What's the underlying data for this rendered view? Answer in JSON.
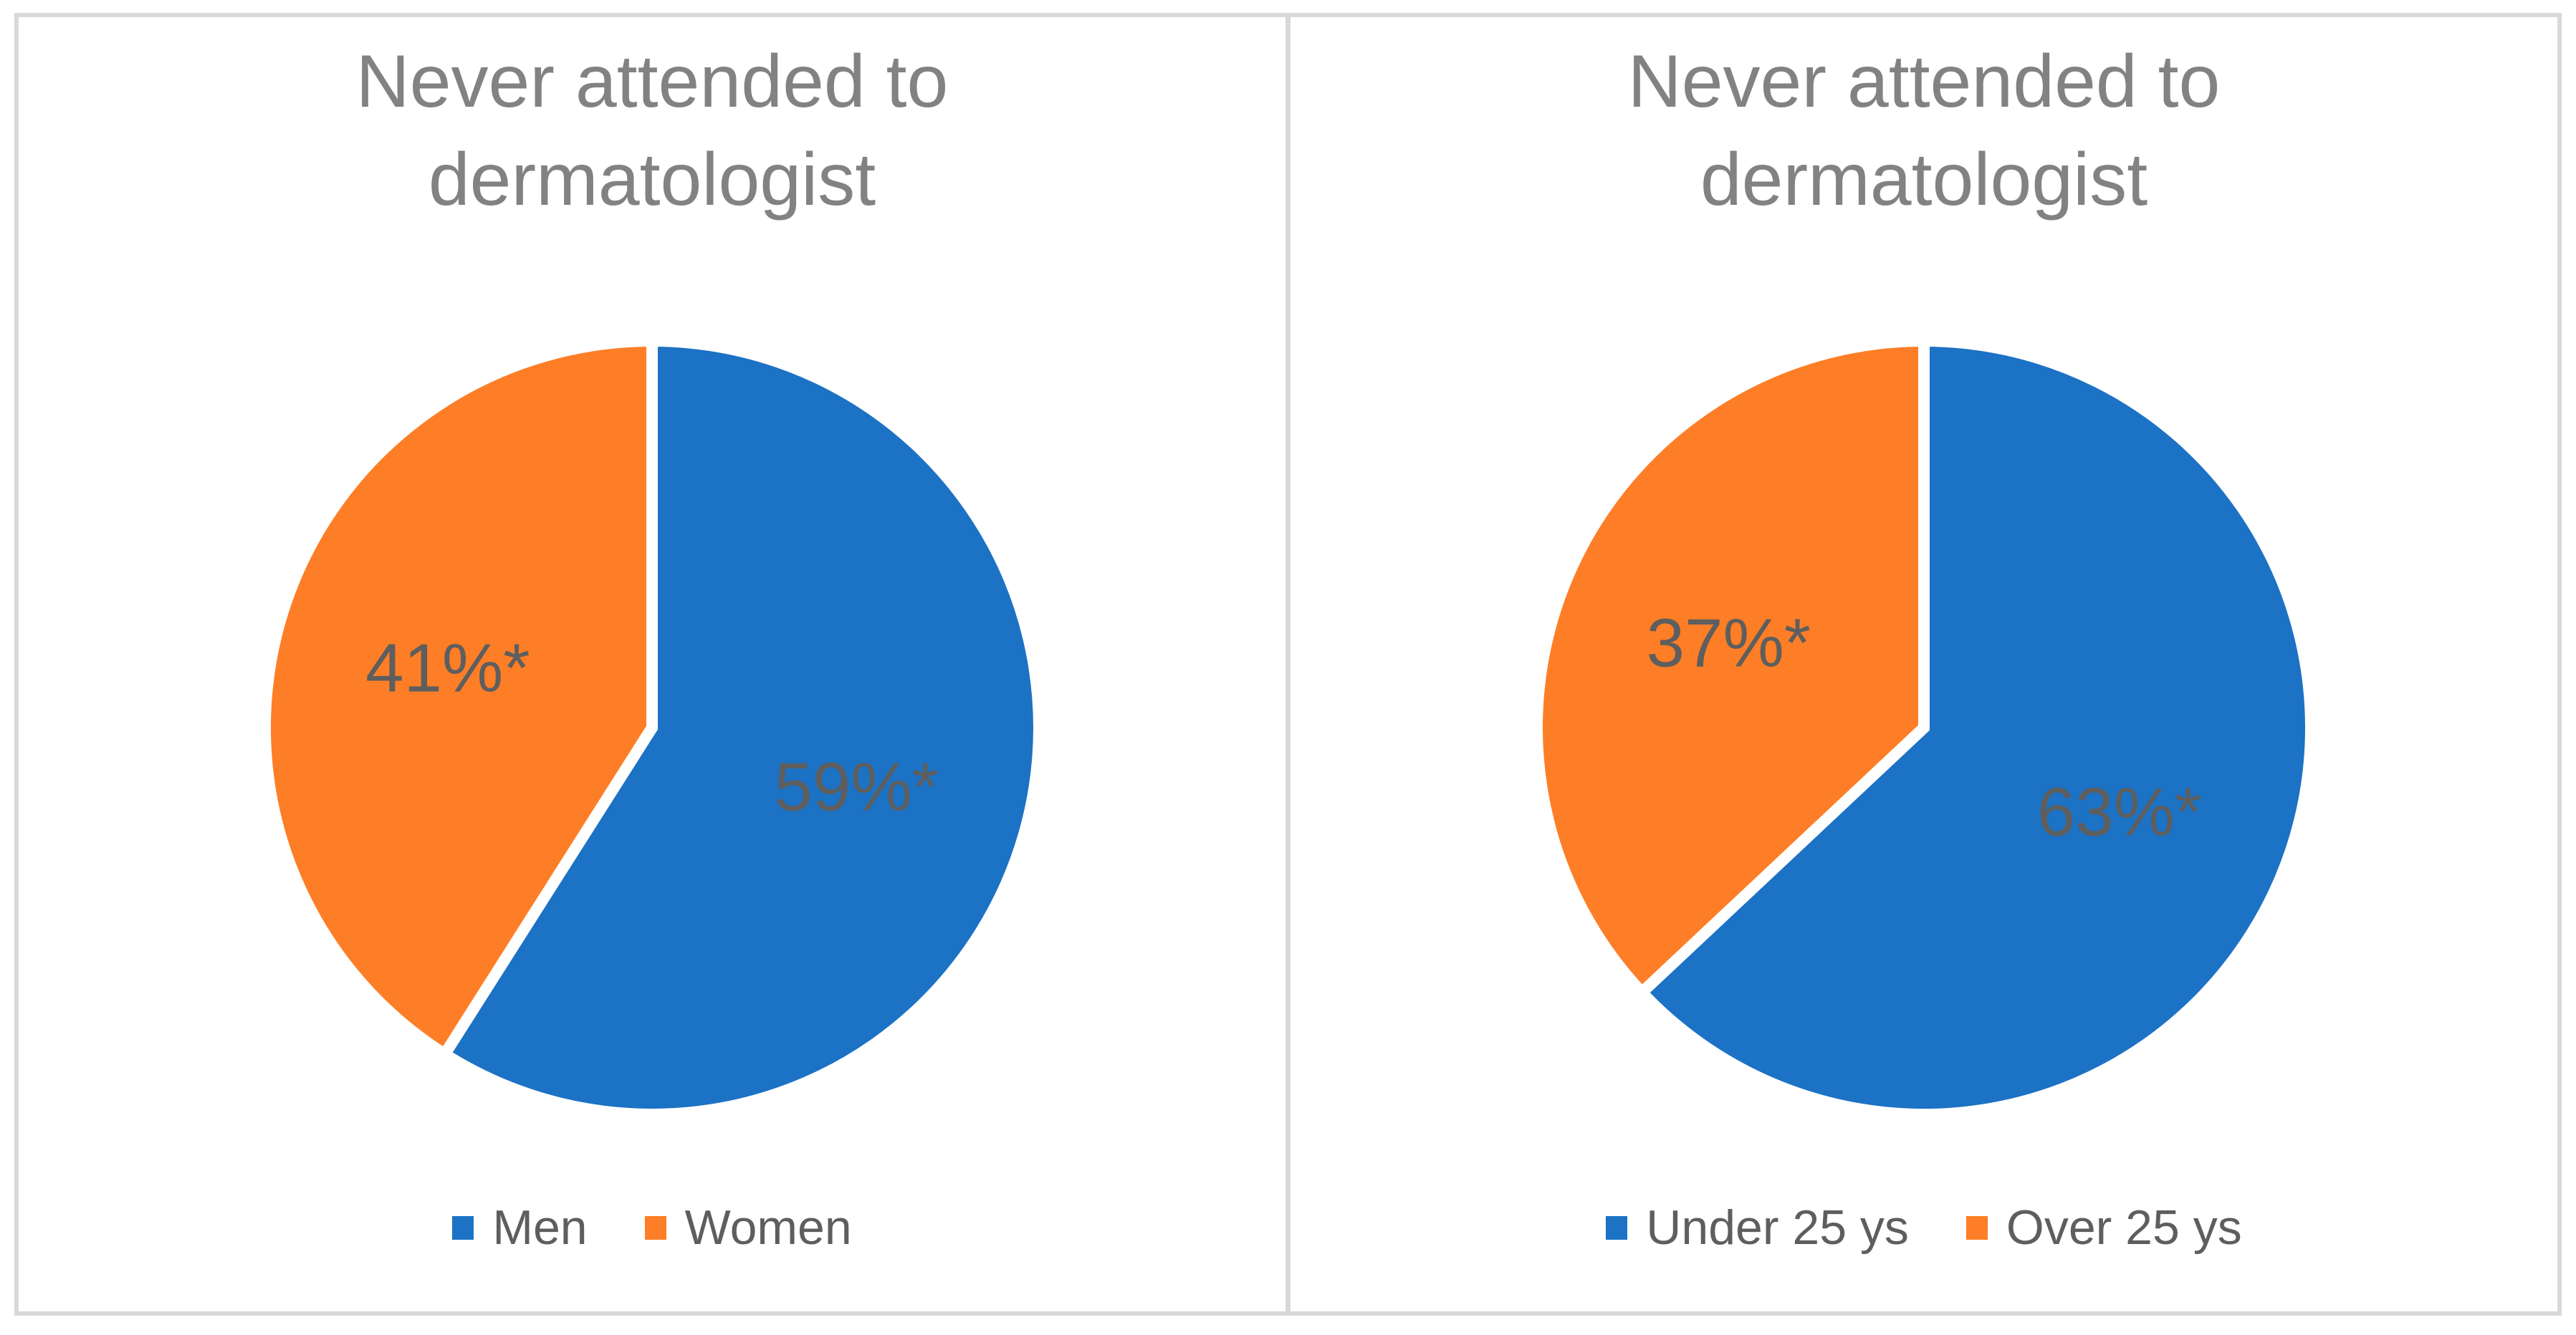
{
  "figure": {
    "background_color": "#FFFFFF",
    "border_color": "#D9D9D9",
    "title_color": "#828282",
    "text_color": "#5E5E5E"
  },
  "chart_data": [
    {
      "type": "pie",
      "title": "Never attended to\ndermatologist",
      "start_angle_deg": 0,
      "direction": "clockwise",
      "legend_position": "bottom",
      "slice_border_color": "#FFFFFF",
      "label_color": "#5E5E5E",
      "title_color": "#828282",
      "slices": [
        {
          "label": "Men",
          "value_pct": 59,
          "display_label": "59%*",
          "color": "#1C72C4"
        },
        {
          "label": "Women",
          "value_pct": 41,
          "display_label": "41%*",
          "color": "#FD7E26"
        }
      ]
    },
    {
      "type": "pie",
      "title": "Never attended to\ndermatologist",
      "start_angle_deg": 0,
      "direction": "clockwise",
      "legend_position": "bottom",
      "slice_border_color": "#FFFFFF",
      "label_color": "#5E5E5E",
      "title_color": "#828282",
      "slices": [
        {
          "label": "Under 25 ys",
          "value_pct": 63,
          "display_label": "63%*",
          "color": "#1C72C4"
        },
        {
          "label": "Over 25 ys",
          "value_pct": 37,
          "display_label": "37%*",
          "color": "#FD7E26"
        }
      ]
    }
  ]
}
